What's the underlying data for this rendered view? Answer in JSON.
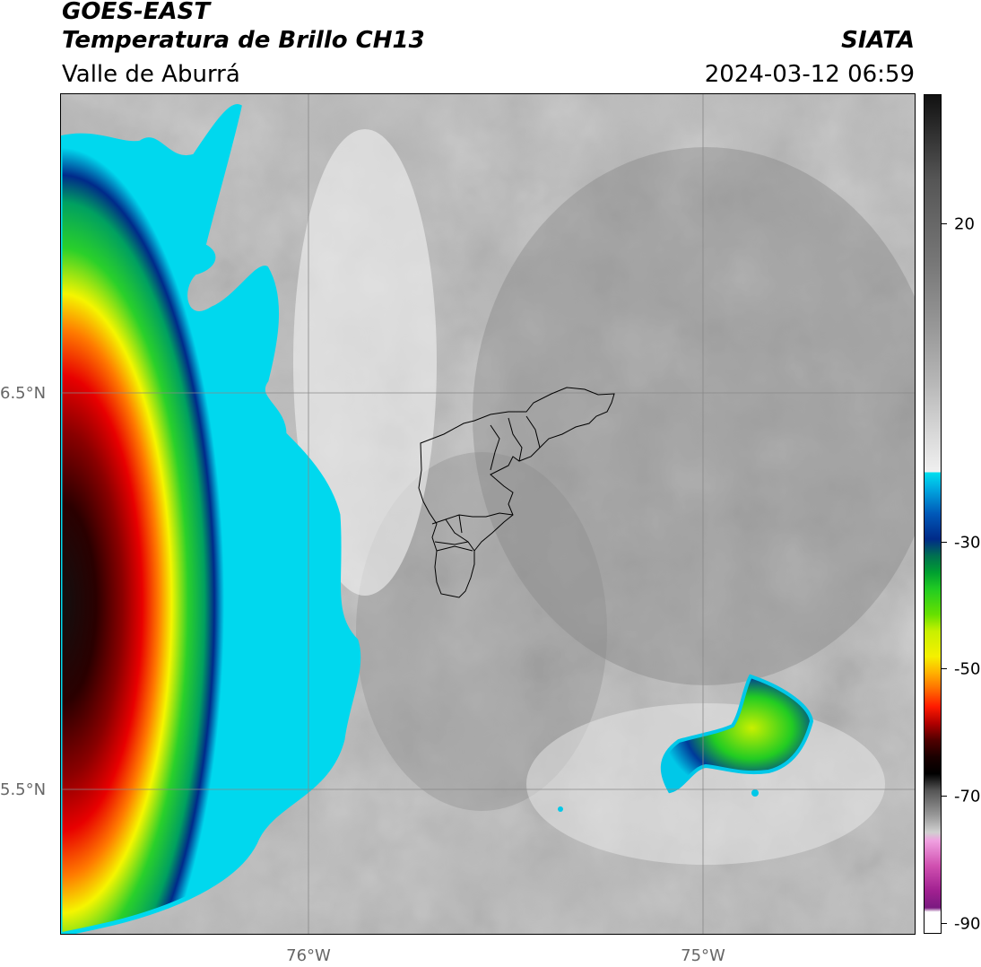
{
  "header": {
    "satellite": "GOES-EAST",
    "product": "Temperatura de Brillo CH13",
    "region": "Valle de Aburrá",
    "brand": "SIATA",
    "datetime": "2024-03-12 06:59"
  },
  "axes": {
    "lat_labels": [
      "6.5°N",
      "5.5°N"
    ],
    "lon_labels": [
      "76°W",
      "75°W"
    ]
  },
  "colorbar": {
    "ticks": [
      "20",
      "-30",
      "-50",
      "-70",
      "-90"
    ]
  },
  "colors": {
    "background_clear": "#c4c4c4",
    "cold_cloud_cyan": "#00d8ee",
    "cold_cloud_blue": "#003c9a",
    "green": "#2ad02a",
    "yellow": "#f5f500",
    "orange": "#ff8c00",
    "red": "#e80000",
    "dark_red": "#5a0000",
    "black": "#101010"
  }
}
